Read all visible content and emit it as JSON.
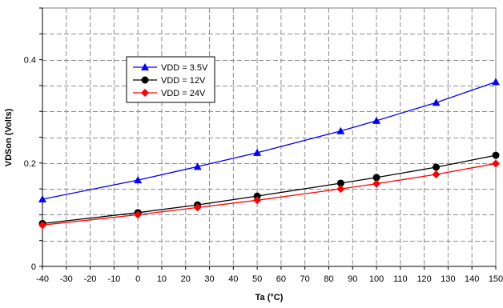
{
  "chart_data": {
    "type": "line",
    "xlabel": "Ta (°C)",
    "ylabel": "VDSon (Volts)",
    "xlim": [
      -40,
      150
    ],
    "ylim": [
      0,
      0.5
    ],
    "x_ticks": [
      -40,
      -30,
      -20,
      -10,
      0,
      10,
      20,
      30,
      40,
      50,
      60,
      70,
      80,
      90,
      100,
      110,
      120,
      130,
      140,
      150
    ],
    "x_tick_labels": [
      "-40",
      "-30",
      "-20",
      "-10",
      "0",
      "10",
      "20",
      "30",
      "40",
      "50",
      "60",
      "70",
      "80",
      "90",
      "100",
      "110",
      "120",
      "130",
      "140",
      "150"
    ],
    "y_ticks": [
      0,
      0.2,
      0.4
    ],
    "y_tick_labels": [
      "0",
      "0.2",
      "0.4"
    ],
    "grid": "dashed",
    "legend_position": "upper-left",
    "series": [
      {
        "name": "VDD = 3.5V",
        "color": "#0000ff",
        "marker": "triangle",
        "x": [
          -40,
          0,
          25,
          50,
          85,
          100,
          125,
          150
        ],
        "y": [
          0.13,
          0.167,
          0.193,
          0.22,
          0.262,
          0.282,
          0.317,
          0.357
        ]
      },
      {
        "name": "VDD = 12V",
        "color": "#000000",
        "marker": "circle",
        "x": [
          -40,
          0,
          25,
          50,
          85,
          100,
          125,
          150
        ],
        "y": [
          0.083,
          0.104,
          0.119,
          0.136,
          0.161,
          0.172,
          0.192,
          0.215
        ]
      },
      {
        "name": "VDD = 24V",
        "color": "#ff0000",
        "marker": "diamond",
        "x": [
          -40,
          0,
          25,
          50,
          85,
          100,
          125,
          150
        ],
        "y": [
          0.08,
          0.1,
          0.114,
          0.128,
          0.15,
          0.16,
          0.178,
          0.199
        ]
      }
    ]
  }
}
